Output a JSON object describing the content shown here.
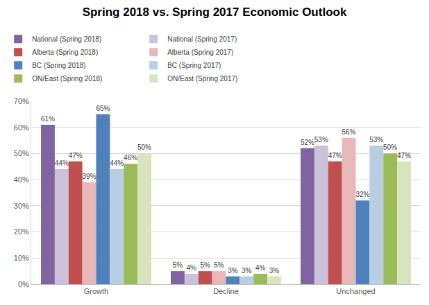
{
  "chart_data": {
    "type": "bar",
    "title": "Spring 2018 vs. Spring 2017 Economic Outlook",
    "categories": [
      "Growth",
      "Decline",
      "Unchanged"
    ],
    "series": [
      {
        "name": "National (Spring 2018)",
        "color": "#8064A2",
        "values": [
          61,
          5,
          52
        ],
        "value_labels": [
          "61%",
          "5%",
          "52%"
        ]
      },
      {
        "name": "National (Spring 2017)",
        "color": "#CCC1DA",
        "values": [
          44,
          4,
          53
        ],
        "value_labels": [
          "44%",
          "4%",
          "53%"
        ]
      },
      {
        "name": "Alberta (Spring 2018)",
        "color": "#C0504D",
        "values": [
          47,
          5,
          47
        ],
        "value_labels": [
          "47%",
          "5%",
          "47%"
        ]
      },
      {
        "name": "Alberta (Spring 2017)",
        "color": "#E6B9B8",
        "values": [
          39,
          5,
          56
        ],
        "value_labels": [
          "39%",
          "5%",
          "56%"
        ]
      },
      {
        "name": "BC (Spring 2018)",
        "color": "#4F81BD",
        "values": [
          65,
          3,
          32
        ],
        "value_labels": [
          "65%",
          "3%",
          "32%"
        ]
      },
      {
        "name": "BC (Spring 2017)",
        "color": "#B9CDE5",
        "values": [
          44,
          3,
          53
        ],
        "value_labels": [
          "44%",
          "3%",
          "53%"
        ]
      },
      {
        "name": "ON/East (Spring 2018)",
        "color": "#9BBB59",
        "values": [
          46,
          4,
          50
        ],
        "value_labels": [
          "46%",
          "4%",
          "50%"
        ]
      },
      {
        "name": "ON/East (Spring 2017)",
        "color": "#D7E4BD",
        "values": [
          50,
          3,
          47
        ],
        "value_labels": [
          "50%",
          "3%",
          "47%"
        ]
      }
    ],
    "ylim": [
      0,
      70
    ],
    "yticks": [
      {
        "value": 0,
        "label": "0%"
      },
      {
        "value": 10,
        "label": "10%"
      },
      {
        "value": 20,
        "label": "20%"
      },
      {
        "value": 30,
        "label": "30%"
      },
      {
        "value": 40,
        "label": "40%"
      },
      {
        "value": 50,
        "label": "50%"
      },
      {
        "value": 60,
        "label": "60%"
      },
      {
        "value": 70,
        "label": "70%"
      }
    ],
    "grid": true,
    "legend": "top",
    "data_labels": true
  }
}
